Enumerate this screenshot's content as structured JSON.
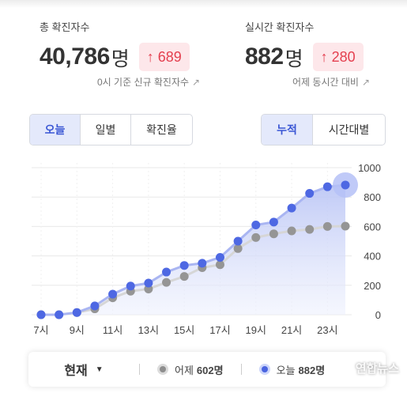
{
  "stats": {
    "total": {
      "label": "총 확진자수",
      "value": "40,786",
      "unit": "명",
      "delta": "689",
      "note": "0시 기준 신규 확진자수"
    },
    "realtime": {
      "label": "실시간 확진자수",
      "value": "882",
      "unit": "명",
      "delta": "280",
      "note": "어제 동시간 대비"
    }
  },
  "period_tabs": [
    {
      "label": "오늘",
      "active": true
    },
    {
      "label": "일별",
      "active": false
    },
    {
      "label": "확진율",
      "active": false
    }
  ],
  "mode_tabs": [
    {
      "label": "누적",
      "active": true
    },
    {
      "label": "시간대별",
      "active": false
    }
  ],
  "footer": {
    "now_label": "현재",
    "yesterday_label": "어제",
    "yesterday_value": "602명",
    "today_label": "오늘",
    "today_value": "882명"
  },
  "watermark": "연합뉴스",
  "colors": {
    "accent": "#3a56d4",
    "today_line": "#5a72e6",
    "yesterday_line": "#9a9a9a",
    "delta_red": "#e43f4f"
  },
  "chart_data": {
    "type": "line",
    "x": [
      "7",
      "8",
      "9",
      "10",
      "11",
      "12",
      "13",
      "14",
      "15",
      "16",
      "17",
      "18",
      "19",
      "20",
      "21",
      "22",
      "23",
      "24"
    ],
    "x_tick_labels": [
      "7시",
      "9시",
      "11시",
      "13시",
      "15시",
      "17시",
      "19시",
      "21시",
      "23시"
    ],
    "y_ticks": [
      "0",
      "200",
      "400",
      "600",
      "800",
      "1000"
    ],
    "ylim": [
      0,
      1000
    ],
    "series": [
      {
        "name": "오늘",
        "values": [
          0,
          0,
          15,
          60,
          140,
          195,
          215,
          290,
          335,
          350,
          390,
          500,
          610,
          630,
          725,
          825,
          870,
          882
        ]
      },
      {
        "name": "어제",
        "values": [
          0,
          0,
          15,
          40,
          115,
          160,
          175,
          220,
          260,
          320,
          340,
          450,
          525,
          550,
          570,
          580,
          600,
          602
        ]
      }
    ],
    "highlight_index": 17,
    "grid": true
  }
}
